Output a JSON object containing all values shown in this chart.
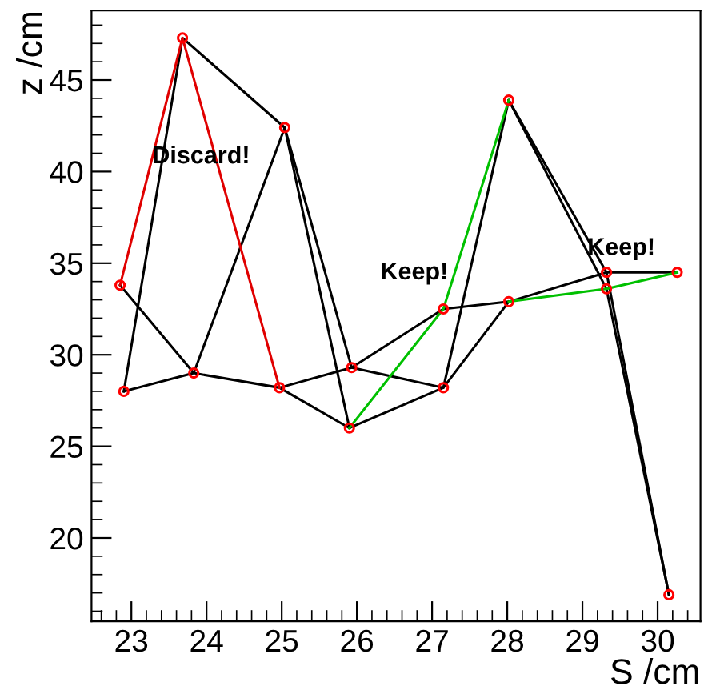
{
  "chart_data": {
    "type": "line",
    "xlabel": "S /cm",
    "ylabel": "z /cm",
    "xlim": [
      22.47,
      30.57
    ],
    "ylim": [
      15.45,
      48.8
    ],
    "xticks": [
      23,
      24,
      25,
      26,
      27,
      28,
      29,
      30
    ],
    "yticks": [
      20,
      25,
      30,
      35,
      40,
      45
    ],
    "grid": false,
    "legend": false,
    "marker": "none",
    "line_style": "solid",
    "series": [
      {
        "color": "#000000",
        "x": [
          22.9,
          23.68,
          25.04,
          25.9
        ],
        "values": [
          28.0,
          47.3,
          42.4,
          26.0
        ]
      },
      {
        "color": "#000000",
        "x": [
          22.85,
          23.83,
          25.04,
          25.93,
          27.15,
          28.02,
          29.32,
          30.26
        ],
        "values": [
          33.8,
          29.0,
          42.4,
          29.3,
          28.2,
          43.9,
          34.5,
          34.5
        ]
      },
      {
        "color": "#000000",
        "x": [
          22.9,
          23.83,
          24.97,
          25.93,
          27.15,
          28.02,
          29.32,
          30.15
        ],
        "values": [
          28.0,
          29.0,
          28.2,
          29.3,
          32.5,
          32.9,
          34.5,
          16.9
        ]
      },
      {
        "color": "#000000",
        "x": [
          24.97,
          25.9,
          27.15,
          28.02
        ],
        "values": [
          28.2,
          26.0,
          28.2,
          32.9
        ]
      },
      {
        "color": "#000000",
        "x": [
          28.02,
          29.32,
          30.15
        ],
        "values": [
          43.9,
          33.6,
          16.9
        ]
      },
      {
        "color": "#e00000",
        "x": [
          22.85,
          23.68,
          24.97
        ],
        "values": [
          33.8,
          47.3,
          28.2
        ]
      },
      {
        "color": "#00c000",
        "x": [
          25.9,
          27.15,
          28.02
        ],
        "values": [
          26.0,
          32.5,
          43.9
        ]
      },
      {
        "color": "#00c000",
        "x": [
          28.02,
          29.32,
          30.26
        ],
        "values": [
          32.9,
          33.6,
          34.5
        ]
      },
      {
        "type": "scatter",
        "color": "#ff0000",
        "marker": "circle",
        "x": [
          22.85,
          22.9,
          23.68,
          23.83,
          25.04,
          24.97,
          25.9,
          25.93,
          27.15,
          27.15,
          28.02,
          28.02,
          29.32,
          29.32,
          30.26,
          30.15
        ],
        "values": [
          33.8,
          28.0,
          47.3,
          29.0,
          42.4,
          28.2,
          26.0,
          29.3,
          32.5,
          28.2,
          43.9,
          32.9,
          34.5,
          33.6,
          34.5,
          16.9
        ]
      }
    ],
    "annotations": [
      "Discard!",
      "Keep!",
      "Keep!"
    ]
  }
}
